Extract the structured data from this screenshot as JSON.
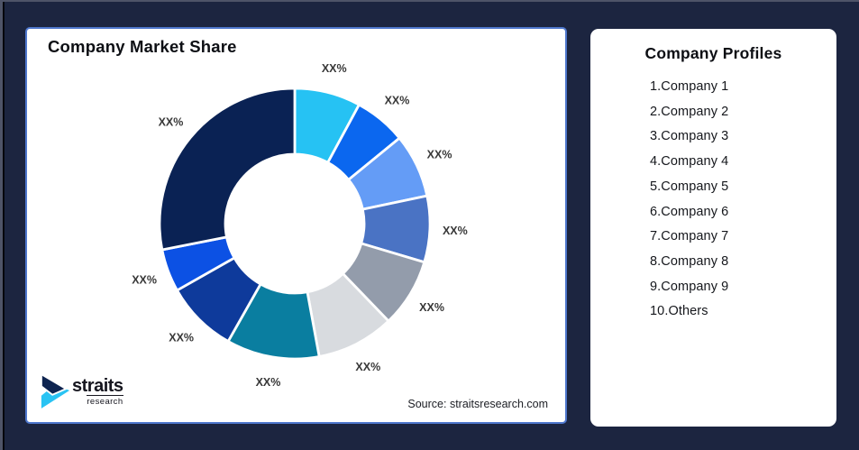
{
  "frame": {
    "background": "#1C2540"
  },
  "chart_card": {
    "title": "Company Market Share",
    "source_note": "Source: straitsresearch.com",
    "logo": {
      "brand": "straits",
      "subtitle": "research",
      "icon_top_color": "#0E2450",
      "icon_bottom_color": "#29C3F3"
    }
  },
  "chart_data": {
    "type": "pie",
    "subtype": "donut",
    "title": "Company Market Share",
    "hole_ratio": 0.51,
    "start_angle_deg": 0,
    "direction": "clockwise",
    "legend": "none",
    "categories": [
      "Company 1",
      "Company 2",
      "Company 3",
      "Company 4",
      "Company 5",
      "Company 6",
      "Company 7",
      "Company 8",
      "Company 9",
      "Others"
    ],
    "values": [
      7.9,
      6.2,
      7.6,
      7.9,
      8.2,
      9.3,
      11.1,
      8.6,
      5.1,
      28.1
    ],
    "data_labels": [
      "XX%",
      "XX%",
      "XX%",
      "XX%",
      "XX%",
      "XX%",
      "XX%",
      "XX%",
      "XX%",
      "XX%"
    ],
    "colors": [
      "#26C2F3",
      "#0B67EF",
      "#649CF6",
      "#4A73C4",
      "#939CAB",
      "#D8DBDF",
      "#0A7EA0",
      "#0E3A9B",
      "#0C51E4",
      "#0A2254"
    ],
    "label_color": "#383838",
    "separator_color": "#FFFFFF"
  },
  "profiles_card": {
    "title": "Company Profiles",
    "items": [
      "1.Company 1",
      "2.Company 2",
      "3.Company 3",
      "4.Company 4",
      "5.Company 5",
      "6.Company 6",
      "7.Company 7",
      "8.Company 8",
      "9.Company 9",
      "10.Others"
    ]
  }
}
